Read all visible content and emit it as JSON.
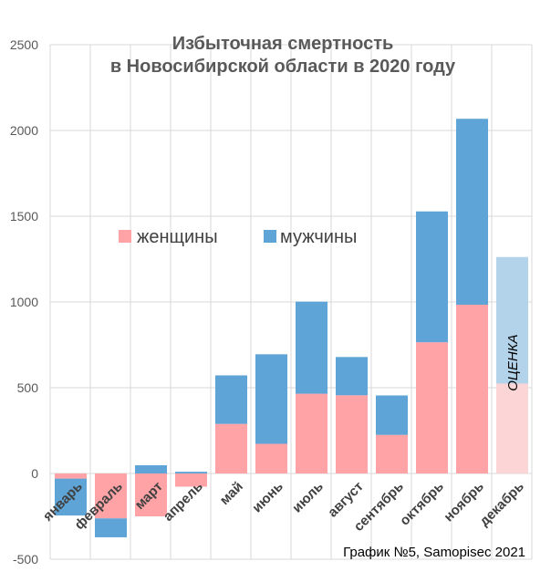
{
  "chart_data": {
    "type": "bar",
    "stacked": true,
    "title": "Избыточная смертность\nв Новосибирской области в 2020 году",
    "title_lines": [
      "Избыточная смертность",
      "в Новосибирской области в 2020 году"
    ],
    "categories": [
      "январь",
      "февраль",
      "март",
      "апрель",
      "май",
      "июнь",
      "июль",
      "август",
      "сентябрь",
      "октябрь",
      "ноябрь",
      "декабрь"
    ],
    "series": [
      {
        "name": "женщины",
        "color": "#ffa3a6",
        "values": [
          -30,
          -262,
          -250,
          -77,
          289,
          173,
          465,
          456,
          225,
          765,
          984,
          524
        ]
      },
      {
        "name": "мужчины",
        "color": "#5ea4d7",
        "values": [
          -215,
          -110,
          48,
          10,
          283,
          522,
          537,
          223,
          230,
          763,
          1084,
          738
        ]
      }
    ],
    "estimate_category": "декабрь",
    "estimate_label": "ОЦЕНКА",
    "estimate_colors": {
      "женщины": "#fcd6d6",
      "мужчины": "#b3d3ea"
    },
    "ylim": [
      -500,
      2500
    ],
    "yticks": [
      -500,
      0,
      500,
      1000,
      1500,
      2000,
      2500
    ],
    "grid": true,
    "legend_position": "center-left",
    "xlabel": "",
    "ylabel": ""
  },
  "footer": "График №5, Samopisec 2021"
}
